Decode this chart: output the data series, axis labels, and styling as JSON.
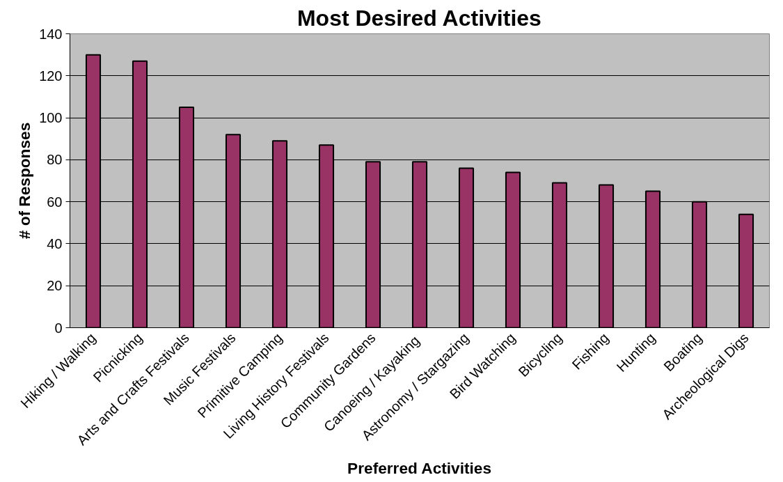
{
  "chart_data": {
    "type": "bar",
    "title": "Most Desired Activities",
    "xlabel": "Preferred Activities",
    "ylabel": "# of Responses",
    "categories": [
      "Hiking / Walking",
      "Picnicking",
      "Arts and Crafts Festivals",
      "Music Festivals",
      "Primitive Camping",
      "Living History Festivals",
      "Community Gardens",
      "Canoeing /  Kayaking",
      "Astronomy / Stargazing",
      "Bird Watching",
      "Bicycling",
      "Fishing",
      "Hunting",
      "Boating",
      "Archeological Digs"
    ],
    "series": [
      {
        "color": "#993366",
        "values": [
          130,
          127,
          105,
          92,
          89,
          87,
          79,
          79,
          76,
          74,
          69,
          68,
          65,
          60,
          54
        ]
      }
    ],
    "ylim": [
      0,
      140
    ],
    "yticks": [
      0,
      20,
      40,
      60,
      80,
      100,
      120,
      140
    ],
    "grid": "y"
  }
}
